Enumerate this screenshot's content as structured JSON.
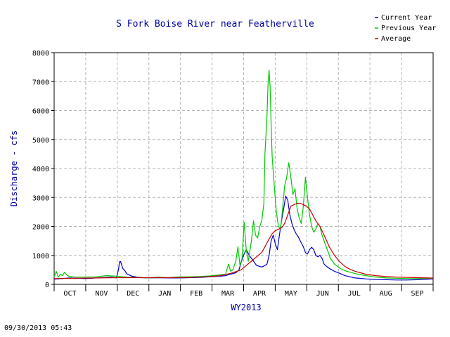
{
  "timestamp": "09/30/2013 05:43",
  "chart_data": {
    "type": "line",
    "title": "S Fork Boise River near Featherville",
    "xlabel": "WY2013",
    "ylabel": "Discharge - cfs",
    "ylim": [
      0,
      8000
    ],
    "yticks": [
      0,
      1000,
      2000,
      3000,
      4000,
      5000,
      6000,
      7000,
      8000
    ],
    "months": [
      "OCT",
      "NOV",
      "DEC",
      "JAN",
      "FEB",
      "MAR",
      "APR",
      "MAY",
      "JUN",
      "JUL",
      "AUG",
      "SEP"
    ],
    "xlim": [
      0,
      365
    ],
    "grid": true,
    "legend_position": "top-right",
    "series": [
      {
        "name": "Current Year",
        "color": "#0000c8",
        "points": [
          [
            0,
            180
          ],
          [
            15,
            220
          ],
          [
            30,
            200
          ],
          [
            45,
            230
          ],
          [
            55,
            250
          ],
          [
            60,
            220
          ],
          [
            62,
            520
          ],
          [
            63,
            780
          ],
          [
            64,
            790
          ],
          [
            66,
            550
          ],
          [
            68,
            480
          ],
          [
            70,
            360
          ],
          [
            75,
            280
          ],
          [
            80,
            250
          ],
          [
            85,
            230
          ],
          [
            90,
            220
          ],
          [
            100,
            230
          ],
          [
            110,
            220
          ],
          [
            120,
            220
          ],
          [
            130,
            230
          ],
          [
            140,
            240
          ],
          [
            150,
            260
          ],
          [
            160,
            280
          ],
          [
            165,
            300
          ],
          [
            170,
            350
          ],
          [
            175,
            400
          ],
          [
            178,
            500
          ],
          [
            180,
            750
          ],
          [
            183,
            1050
          ],
          [
            185,
            1200
          ],
          [
            188,
            1000
          ],
          [
            190,
            900
          ],
          [
            193,
            750
          ],
          [
            195,
            650
          ],
          [
            198,
            620
          ],
          [
            200,
            600
          ],
          [
            203,
            650
          ],
          [
            205,
            700
          ],
          [
            207,
            1000
          ],
          [
            209,
            1500
          ],
          [
            211,
            1700
          ],
          [
            213,
            1400
          ],
          [
            215,
            1200
          ],
          [
            217,
            1700
          ],
          [
            219,
            2200
          ],
          [
            221,
            2600
          ],
          [
            223,
            3050
          ],
          [
            225,
            2900
          ],
          [
            227,
            2400
          ],
          [
            229,
            2100
          ],
          [
            231,
            1900
          ],
          [
            233,
            1750
          ],
          [
            235,
            1650
          ],
          [
            237,
            1500
          ],
          [
            240,
            1300
          ],
          [
            242,
            1100
          ],
          [
            244,
            1050
          ],
          [
            246,
            1200
          ],
          [
            248,
            1280
          ],
          [
            250,
            1200
          ],
          [
            252,
            1000
          ],
          [
            254,
            950
          ],
          [
            256,
            1000
          ],
          [
            258,
            900
          ],
          [
            260,
            700
          ],
          [
            263,
            600
          ],
          [
            265,
            550
          ],
          [
            270,
            450
          ],
          [
            275,
            380
          ],
          [
            280,
            300
          ],
          [
            290,
            220
          ],
          [
            300,
            190
          ],
          [
            310,
            170
          ],
          [
            320,
            160
          ],
          [
            330,
            150
          ],
          [
            340,
            150
          ],
          [
            350,
            160
          ],
          [
            360,
            180
          ],
          [
            365,
            190
          ]
        ]
      },
      {
        "name": "Previous Year",
        "color": "#00c800",
        "points": [
          [
            0,
            260
          ],
          [
            2,
            450
          ],
          [
            4,
            250
          ],
          [
            6,
            350
          ],
          [
            8,
            300
          ],
          [
            10,
            420
          ],
          [
            12,
            330
          ],
          [
            14,
            280
          ],
          [
            20,
            250
          ],
          [
            30,
            250
          ],
          [
            40,
            260
          ],
          [
            50,
            300
          ],
          [
            60,
            280
          ],
          [
            70,
            250
          ],
          [
            80,
            240
          ],
          [
            90,
            220
          ],
          [
            100,
            250
          ],
          [
            110,
            230
          ],
          [
            120,
            260
          ],
          [
            130,
            260
          ],
          [
            140,
            270
          ],
          [
            150,
            290
          ],
          [
            160,
            330
          ],
          [
            165,
            350
          ],
          [
            168,
            700
          ],
          [
            170,
            450
          ],
          [
            172,
            500
          ],
          [
            175,
            800
          ],
          [
            177,
            1300
          ],
          [
            179,
            650
          ],
          [
            181,
            900
          ],
          [
            183,
            2150
          ],
          [
            185,
            1200
          ],
          [
            187,
            800
          ],
          [
            190,
            1500
          ],
          [
            192,
            2200
          ],
          [
            194,
            1700
          ],
          [
            196,
            1600
          ],
          [
            198,
            2000
          ],
          [
            200,
            2200
          ],
          [
            202,
            2800
          ],
          [
            203,
            4500
          ],
          [
            205,
            5800
          ],
          [
            206,
            6900
          ],
          [
            207,
            7400
          ],
          [
            208,
            6800
          ],
          [
            209,
            5500
          ],
          [
            210,
            4400
          ],
          [
            212,
            3400
          ],
          [
            214,
            2500
          ],
          [
            216,
            2000
          ],
          [
            218,
            1900
          ],
          [
            220,
            2600
          ],
          [
            222,
            3400
          ],
          [
            224,
            3700
          ],
          [
            226,
            4200
          ],
          [
            228,
            3700
          ],
          [
            230,
            3100
          ],
          [
            232,
            3300
          ],
          [
            234,
            2600
          ],
          [
            236,
            2300
          ],
          [
            238,
            2100
          ],
          [
            240,
            2700
          ],
          [
            242,
            3700
          ],
          [
            244,
            3000
          ],
          [
            246,
            2400
          ],
          [
            248,
            2000
          ],
          [
            250,
            1800
          ],
          [
            252,
            1900
          ],
          [
            254,
            2100
          ],
          [
            256,
            2000
          ],
          [
            258,
            1700
          ],
          [
            260,
            1500
          ],
          [
            263,
            1200
          ],
          [
            266,
            900
          ],
          [
            270,
            700
          ],
          [
            275,
            560
          ],
          [
            280,
            470
          ],
          [
            290,
            370
          ],
          [
            300,
            300
          ],
          [
            310,
            250
          ],
          [
            320,
            220
          ],
          [
            330,
            210
          ],
          [
            340,
            200
          ],
          [
            350,
            200
          ],
          [
            360,
            210
          ],
          [
            365,
            210
          ]
        ]
      },
      {
        "name": "Average",
        "color": "#c80000",
        "points": [
          [
            0,
            200
          ],
          [
            20,
            210
          ],
          [
            40,
            220
          ],
          [
            60,
            230
          ],
          [
            80,
            230
          ],
          [
            100,
            230
          ],
          [
            120,
            230
          ],
          [
            140,
            250
          ],
          [
            150,
            270
          ],
          [
            160,
            300
          ],
          [
            170,
            380
          ],
          [
            180,
            500
          ],
          [
            185,
            650
          ],
          [
            190,
            800
          ],
          [
            195,
            950
          ],
          [
            200,
            1100
          ],
          [
            203,
            1300
          ],
          [
            206,
            1500
          ],
          [
            210,
            1750
          ],
          [
            213,
            1850
          ],
          [
            216,
            1900
          ],
          [
            219,
            1950
          ],
          [
            222,
            2100
          ],
          [
            225,
            2400
          ],
          [
            228,
            2700
          ],
          [
            231,
            2750
          ],
          [
            234,
            2800
          ],
          [
            237,
            2800
          ],
          [
            240,
            2750
          ],
          [
            243,
            2700
          ],
          [
            246,
            2600
          ],
          [
            249,
            2400
          ],
          [
            252,
            2200
          ],
          [
            256,
            2000
          ],
          [
            260,
            1700
          ],
          [
            265,
            1300
          ],
          [
            270,
            1000
          ],
          [
            275,
            780
          ],
          [
            280,
            620
          ],
          [
            285,
            520
          ],
          [
            290,
            450
          ],
          [
            295,
            400
          ],
          [
            300,
            350
          ],
          [
            310,
            300
          ],
          [
            320,
            270
          ],
          [
            330,
            250
          ],
          [
            340,
            240
          ],
          [
            350,
            230
          ],
          [
            360,
            220
          ],
          [
            365,
            215
          ]
        ]
      }
    ]
  }
}
